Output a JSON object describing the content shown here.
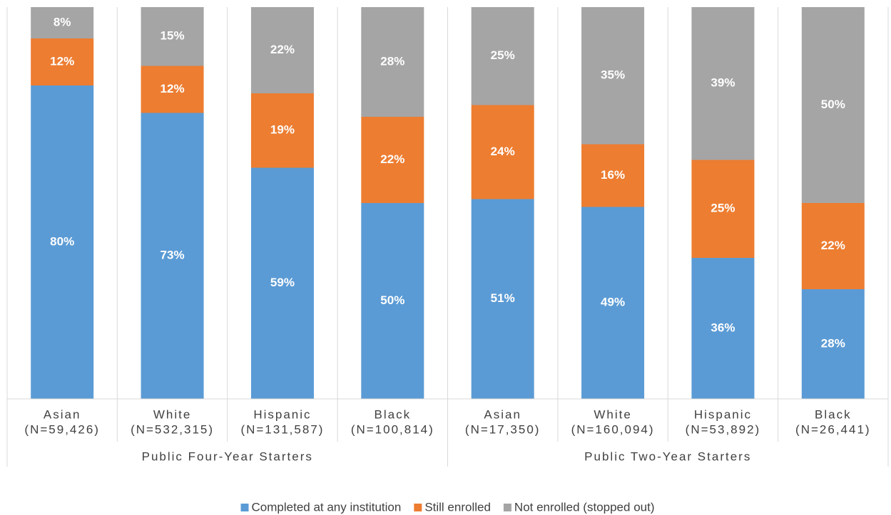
{
  "chart_data": {
    "type": "stacked_bar",
    "groups": [
      {
        "label": "Public Four-Year Starters",
        "categories": [
          [
            "Asian",
            "(N=59,426)"
          ],
          [
            "White",
            "(N=532,315)"
          ],
          [
            "Hispanic",
            "(N=131,587)"
          ],
          [
            "Black",
            "(N=100,814)"
          ]
        ]
      },
      {
        "label": "Public Two-Year Starters",
        "categories": [
          [
            "Asian",
            "(N=17,350)"
          ],
          [
            "White",
            "(N=160,094)"
          ],
          [
            "Hispanic",
            "(N=53,892)"
          ],
          [
            "Black",
            "(N=26,441)"
          ]
        ]
      }
    ],
    "series": [
      {
        "name": "Completed at any institution",
        "color": "#5b9bd5",
        "values": [
          80,
          73,
          59,
          50,
          51,
          49,
          36,
          28
        ],
        "value_labels": [
          "80%",
          "73%",
          "59%",
          "50%",
          "51%",
          "49%",
          "36%",
          "28%"
        ]
      },
      {
        "name": "Still enrolled",
        "color": "#ed7d31",
        "values": [
          12,
          12,
          19,
          22,
          24,
          16,
          25,
          22
        ],
        "value_labels": [
          "12%",
          "12%",
          "19%",
          "22%",
          "24%",
          "16%",
          "25%",
          "22%"
        ]
      },
      {
        "name": "Not enrolled (stopped out)",
        "color": "#a5a5a5",
        "values": [
          8,
          15,
          22,
          28,
          25,
          35,
          39,
          50
        ],
        "value_labels": [
          "8%",
          "15%",
          "22%",
          "28%",
          "25%",
          "35%",
          "39%",
          "50%"
        ]
      }
    ],
    "ylim": [
      0,
      100
    ],
    "legend": "bottom"
  }
}
